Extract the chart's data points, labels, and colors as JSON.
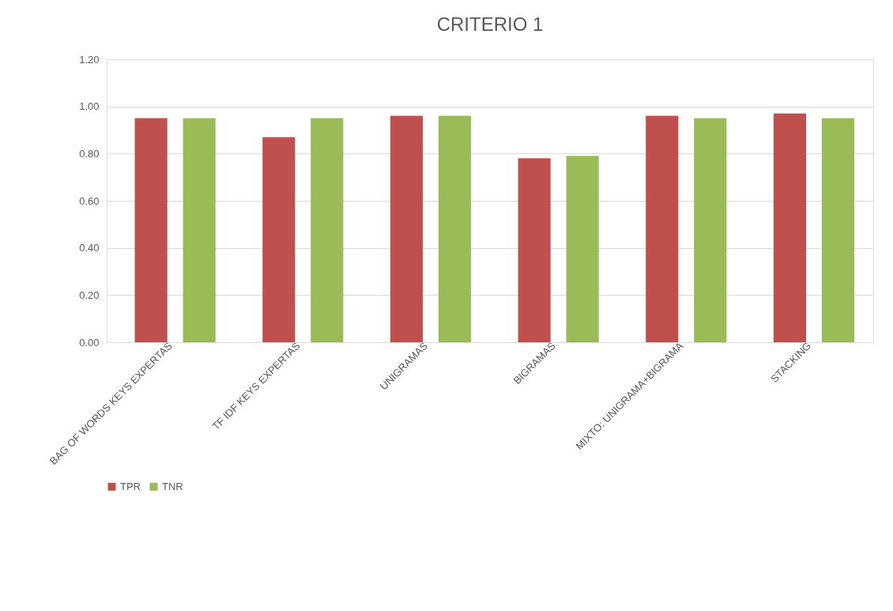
{
  "chart_data": {
    "type": "bar",
    "title": "CRITERIO 1",
    "categories": [
      "BAG OF WORDS KEYS EXPERTAS",
      "TF IDF KEYS EXPERTAS",
      "UNIGRAMAS",
      "BIGRAMAS",
      "MIXTO: UNIGRAMA+BIGRAMA",
      "STACKING"
    ],
    "series": [
      {
        "name": "TPR",
        "color": "#c0504d",
        "values": [
          0.95,
          0.87,
          0.96,
          0.78,
          0.96,
          0.97
        ]
      },
      {
        "name": "TNR",
        "color": "#9bbb59",
        "values": [
          0.95,
          0.95,
          0.96,
          0.79,
          0.95,
          0.95
        ]
      }
    ],
    "ylim": [
      0,
      1.2
    ],
    "yticks": [
      {
        "value": 0,
        "label": "0.00"
      },
      {
        "value": 0.2,
        "label": "0.20"
      },
      {
        "value": 0.4,
        "label": "0.40"
      },
      {
        "value": 0.6,
        "label": "0.60"
      },
      {
        "value": 0.8,
        "label": "0.80"
      },
      {
        "value": 1.0,
        "label": "1.00"
      },
      {
        "value": 1.2,
        "label": "1.20"
      }
    ],
    "grid": "y",
    "legend": "bottom"
  }
}
